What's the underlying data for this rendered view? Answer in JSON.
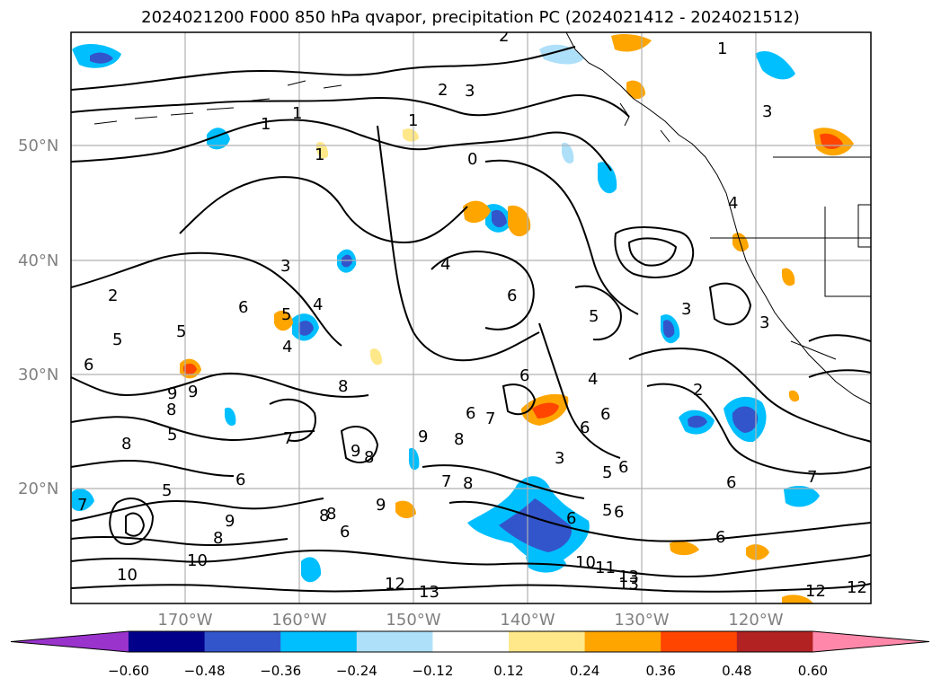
{
  "title": "2024021200 F000 850 hPa qvapor, precipitation PC (2024021412 - 2024021512)",
  "map": {
    "lat_labels": [
      "50°N",
      "40°N",
      "30°N",
      "20°N"
    ],
    "lon_labels": [
      "170°W",
      "160°W",
      "150°W",
      "140°W",
      "130°W",
      "120°W"
    ],
    "contour_labels": [
      "2",
      "3",
      "1",
      "1",
      "1",
      "2",
      "1",
      "0",
      "1",
      "3",
      "4",
      "2",
      "3",
      "4",
      "6",
      "6",
      "5",
      "5",
      "4",
      "4",
      "6",
      "3",
      "5",
      "3",
      "5",
      "8",
      "8",
      "9",
      "9",
      "6",
      "6",
      "7",
      "7",
      "9",
      "8",
      "9",
      "8",
      "6",
      "8",
      "5",
      "6",
      "5",
      "6",
      "4",
      "3",
      "2",
      "8",
      "7",
      "8",
      "8",
      "9",
      "6",
      "6",
      "5",
      "5",
      "6",
      "6",
      "9",
      "8",
      "10",
      "10",
      "12",
      "11",
      "13",
      "13",
      "12",
      "10",
      "13",
      "12",
      "7",
      "6",
      "6",
      "7"
    ]
  },
  "colorbar": {
    "ticks": [
      "−0.60",
      "−0.48",
      "−0.36",
      "−0.24",
      "−0.12",
      "0.12",
      "0.24",
      "0.36",
      "0.48",
      "0.60"
    ],
    "colors": [
      "#9933cc",
      "#00008b",
      "#3355cc",
      "#00bfff",
      "#aee0fa",
      "#ffffff",
      "#ffe88a",
      "#ffa500",
      "#ff4500",
      "#b22222",
      "#ff88aa"
    ]
  }
}
